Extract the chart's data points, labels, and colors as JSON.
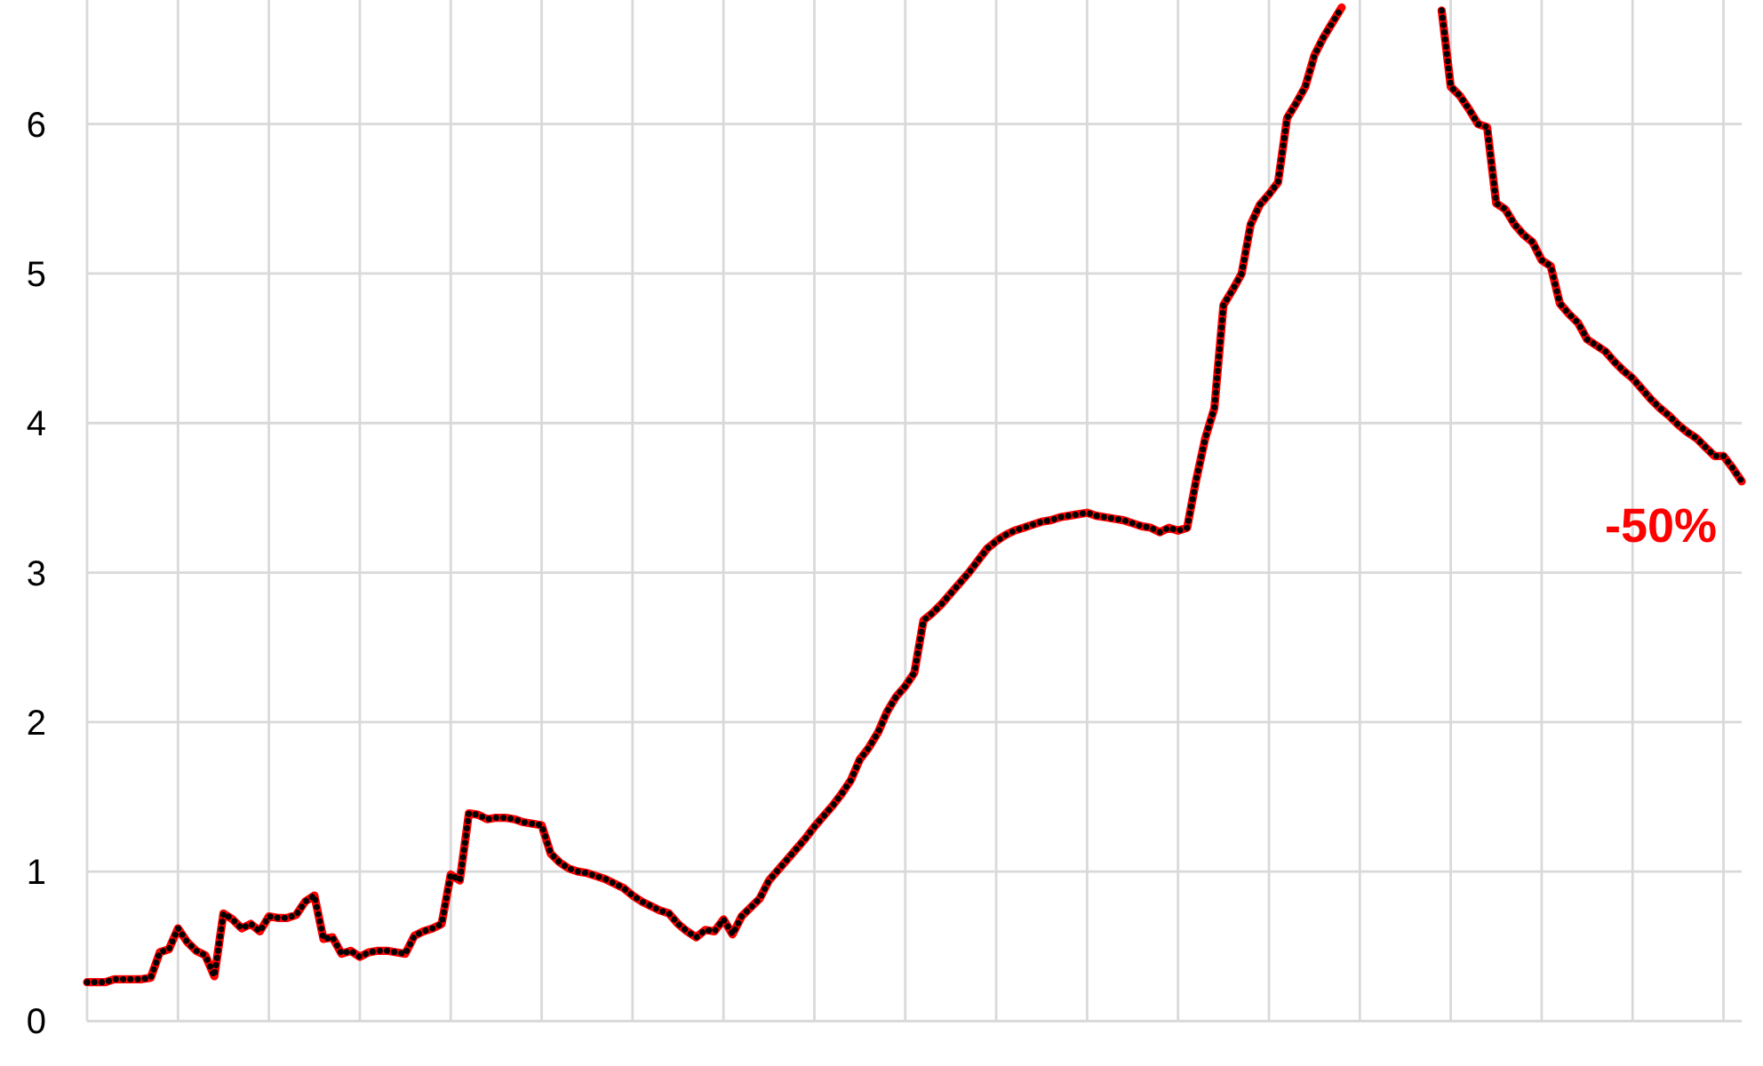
{
  "chart_data": {
    "type": "line",
    "tick_labels": "y",
    "grid": true,
    "line_style": "solid",
    "categories": [
      null,
      null,
      null,
      null,
      null,
      null,
      null,
      null,
      null,
      null,
      null,
      null,
      null,
      null,
      null,
      null,
      null,
      null,
      null,
      null,
      null,
      null,
      null,
      null,
      null,
      null,
      null,
      null,
      null,
      null,
      null,
      null,
      null,
      null,
      null,
      null,
      null,
      null,
      null,
      null,
      null,
      null,
      null,
      null,
      null,
      null,
      null,
      null,
      null,
      null,
      null,
      null,
      null,
      null,
      null,
      null,
      null,
      null,
      null,
      null,
      null,
      null,
      null,
      null,
      null,
      null,
      null,
      null,
      null,
      null,
      null,
      null,
      null,
      null,
      null,
      null,
      null,
      null,
      null,
      null,
      null,
      null,
      null,
      null,
      null,
      null,
      null,
      null,
      null,
      null,
      null,
      null,
      null,
      null,
      null,
      null,
      null,
      null,
      null,
      null,
      null,
      null,
      null,
      null,
      null,
      null,
      null,
      null,
      null,
      null,
      null,
      null,
      null,
      null,
      null,
      null,
      null,
      null,
      null,
      null,
      null,
      null,
      null,
      null,
      null,
      null,
      null,
      null,
      null,
      null,
      null,
      null,
      null,
      null,
      null,
      null,
      null,
      null,
      null,
      null,
      null,
      null,
      null,
      null,
      null,
      null,
      null,
      null,
      null,
      null,
      null,
      null,
      null,
      null,
      null,
      null,
      null,
      null,
      null,
      null,
      null,
      null,
      null,
      null,
      null,
      null,
      null,
      null,
      null,
      null,
      null,
      null,
      null,
      null,
      null,
      null,
      null,
      null,
      null,
      null,
      null,
      null,
      null
    ],
    "series": [
      {
        "color": "#ff0000",
        "values": [
          0.26,
          0.26,
          0.26,
          0.28,
          0.28,
          0.28,
          0.28,
          0.29,
          0.46,
          0.48,
          0.62,
          0.53,
          0.47,
          0.44,
          0.3,
          0.72,
          0.68,
          0.62,
          0.65,
          0.6,
          0.7,
          0.69,
          0.69,
          0.71,
          0.8,
          0.84,
          0.55,
          0.56,
          0.45,
          0.47,
          0.43,
          0.46,
          0.47,
          0.47,
          0.46,
          0.45,
          0.57,
          0.6,
          0.62,
          0.65,
          0.98,
          0.94,
          1.39,
          1.38,
          1.35,
          1.36,
          1.36,
          1.35,
          1.33,
          1.32,
          1.31,
          1.12,
          1.06,
          1.02,
          1.0,
          0.99,
          0.97,
          0.95,
          0.92,
          0.89,
          0.84,
          0.8,
          0.77,
          0.74,
          0.72,
          0.65,
          0.6,
          0.56,
          0.61,
          0.6,
          0.68,
          0.58,
          0.7,
          0.76,
          0.82,
          0.94,
          1.01,
          1.08,
          1.15,
          1.22,
          1.3,
          1.37,
          1.44,
          1.52,
          1.61,
          1.75,
          1.83,
          1.93,
          2.07,
          2.17,
          2.24,
          2.33,
          2.68,
          2.73,
          2.79,
          2.86,
          2.93,
          3.0,
          3.08,
          3.16,
          3.21,
          3.25,
          3.28,
          3.3,
          3.32,
          3.34,
          3.35,
          3.37,
          3.38,
          3.39,
          3.4,
          3.38,
          3.37,
          3.36,
          3.35,
          3.33,
          3.31,
          3.3,
          3.27,
          3.3,
          3.28,
          3.3,
          3.62,
          3.9,
          4.1,
          4.79,
          4.89,
          5.0,
          5.33,
          5.46,
          5.53,
          5.61,
          6.04,
          6.14,
          6.25,
          6.46,
          6.58,
          6.68,
          6.78,
          null,
          null,
          null,
          null,
          null,
          null,
          null,
          null,
          null,
          null,
          null,
          null,
          null,
          null,
          null,
          null,
          null,
          null,
          null,
          null,
          null,
          null,
          null,
          null,
          null,
          null,
          null,
          null,
          null,
          null,
          null,
          null,
          null,
          null,
          null,
          null,
          null,
          null,
          null,
          null,
          null,
          null,
          null,
          null
        ]
      },
      {
        "color": "#ff0000",
        "values": [
          null,
          null,
          null,
          null,
          null,
          null,
          null,
          null,
          null,
          null,
          null,
          null,
          null,
          null,
          null,
          null,
          null,
          null,
          null,
          null,
          null,
          null,
          null,
          null,
          null,
          null,
          null,
          null,
          null,
          null,
          null,
          null,
          null,
          null,
          null,
          null,
          null,
          null,
          null,
          null,
          null,
          null,
          null,
          null,
          null,
          null,
          null,
          null,
          null,
          null,
          null,
          null,
          null,
          null,
          null,
          null,
          null,
          null,
          null,
          null,
          null,
          null,
          null,
          null,
          null,
          null,
          null,
          null,
          null,
          null,
          null,
          null,
          null,
          null,
          null,
          null,
          null,
          null,
          null,
          null,
          null,
          null,
          null,
          null,
          null,
          null,
          null,
          null,
          null,
          null,
          null,
          null,
          null,
          null,
          null,
          null,
          null,
          null,
          null,
          null,
          null,
          null,
          null,
          null,
          null,
          null,
          null,
          null,
          null,
          null,
          null,
          null,
          null,
          null,
          null,
          null,
          null,
          null,
          null,
          null,
          null,
          null,
          null,
          null,
          null,
          null,
          null,
          null,
          null,
          null,
          null,
          null,
          null,
          null,
          null,
          null,
          null,
          null,
          null,
          null,
          null,
          null,
          null,
          null,
          null,
          null,
          null,
          null,
          null,
          6.76,
          6.25,
          6.19,
          6.1,
          6.0,
          5.98,
          5.47,
          5.43,
          5.33,
          5.26,
          5.21,
          5.09,
          5.05,
          4.8,
          4.73,
          4.67,
          4.56,
          4.52,
          4.48,
          4.41,
          4.35,
          4.3,
          4.23,
          4.16,
          4.1,
          4.05,
          3.99,
          3.94,
          3.9,
          3.84,
          3.78,
          3.78,
          3.7,
          3.61
        ]
      },
      {
        "color": "#000000",
        "line_style": "dotted",
        "values": [
          0.26,
          0.26,
          0.26,
          0.28,
          0.28,
          0.28,
          0.28,
          0.29,
          0.46,
          0.48,
          0.62,
          0.53,
          0.47,
          0.44,
          0.3,
          0.72,
          0.68,
          0.62,
          0.65,
          0.6,
          0.7,
          0.69,
          0.69,
          0.71,
          0.8,
          0.84,
          0.55,
          0.56,
          0.45,
          0.47,
          0.43,
          0.46,
          0.47,
          0.47,
          0.46,
          0.45,
          0.57,
          0.6,
          0.62,
          0.65,
          0.98,
          0.94,
          1.39,
          1.38,
          1.35,
          1.36,
          1.36,
          1.35,
          1.33,
          1.32,
          1.31,
          1.12,
          1.06,
          1.02,
          1.0,
          0.99,
          0.97,
          0.95,
          0.92,
          0.89,
          0.84,
          0.8,
          0.77,
          0.74,
          0.72,
          0.65,
          0.6,
          0.56,
          0.61,
          0.6,
          0.68,
          0.58,
          0.7,
          0.76,
          0.82,
          0.94,
          1.01,
          1.08,
          1.15,
          1.22,
          1.3,
          1.37,
          1.44,
          1.52,
          1.61,
          1.75,
          1.83,
          1.93,
          2.07,
          2.17,
          2.24,
          2.33,
          2.68,
          2.73,
          2.79,
          2.86,
          2.93,
          3.0,
          3.08,
          3.16,
          3.21,
          3.25,
          3.28,
          3.3,
          3.32,
          3.34,
          3.35,
          3.37,
          3.38,
          3.39,
          3.4,
          3.38,
          3.37,
          3.36,
          3.35,
          3.33,
          3.31,
          3.3,
          3.27,
          3.3,
          3.28,
          3.3,
          3.62,
          3.9,
          4.1,
          4.79,
          4.89,
          5.0,
          5.33,
          5.46,
          5.53,
          5.61,
          6.04,
          6.14,
          6.25,
          6.46,
          6.58,
          6.68,
          6.78,
          null,
          null,
          null,
          null,
          null,
          null,
          null,
          null,
          null,
          null,
          null,
          null,
          null,
          null,
          null,
          null,
          null,
          null,
          null,
          null,
          null,
          null,
          null,
          null,
          null,
          null,
          null,
          null,
          null,
          null,
          null,
          null,
          null,
          null,
          null,
          null,
          null,
          null,
          null,
          null,
          null,
          null,
          null,
          null
        ]
      },
      {
        "color": "#000000",
        "line_style": "dotted",
        "values": [
          null,
          null,
          null,
          null,
          null,
          null,
          null,
          null,
          null,
          null,
          null,
          null,
          null,
          null,
          null,
          null,
          null,
          null,
          null,
          null,
          null,
          null,
          null,
          null,
          null,
          null,
          null,
          null,
          null,
          null,
          null,
          null,
          null,
          null,
          null,
          null,
          null,
          null,
          null,
          null,
          null,
          null,
          null,
          null,
          null,
          null,
          null,
          null,
          null,
          null,
          null,
          null,
          null,
          null,
          null,
          null,
          null,
          null,
          null,
          null,
          null,
          null,
          null,
          null,
          null,
          null,
          null,
          null,
          null,
          null,
          null,
          null,
          null,
          null,
          null,
          null,
          null,
          null,
          null,
          null,
          null,
          null,
          null,
          null,
          null,
          null,
          null,
          null,
          null,
          null,
          null,
          null,
          null,
          null,
          null,
          null,
          null,
          null,
          null,
          null,
          null,
          null,
          null,
          null,
          null,
          null,
          null,
          null,
          null,
          null,
          null,
          null,
          null,
          null,
          null,
          null,
          null,
          null,
          null,
          null,
          null,
          null,
          null,
          null,
          null,
          null,
          null,
          null,
          null,
          null,
          null,
          null,
          null,
          null,
          null,
          null,
          null,
          null,
          null,
          null,
          null,
          null,
          null,
          null,
          null,
          null,
          null,
          null,
          null,
          6.76,
          6.25,
          6.19,
          6.1,
          6.0,
          5.98,
          5.47,
          5.43,
          5.33,
          5.26,
          5.21,
          5.09,
          5.05,
          4.8,
          4.73,
          4.67,
          4.56,
          4.52,
          4.48,
          4.41,
          4.35,
          4.3,
          4.23,
          4.16,
          4.1,
          4.05,
          3.99,
          3.94,
          3.9,
          3.84,
          3.78,
          3.78,
          3.7,
          3.61
        ]
      }
    ],
    "ylim": [
      0,
      6.83
    ],
    "yticks": [
      0,
      1,
      2,
      3,
      4,
      5,
      6
    ],
    "annotations": [
      "-50%"
    ]
  }
}
